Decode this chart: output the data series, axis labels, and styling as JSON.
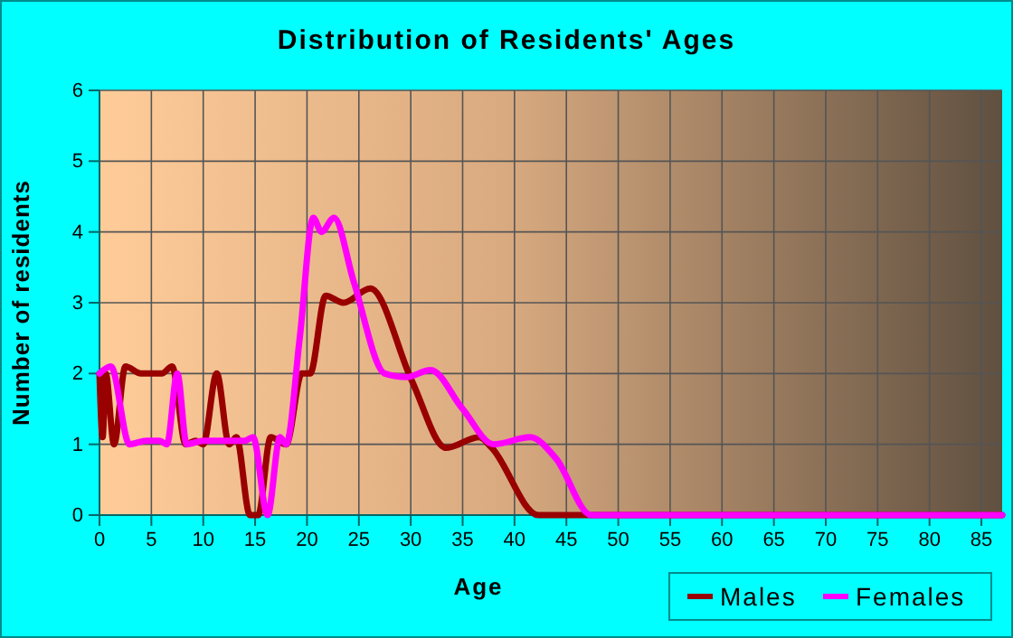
{
  "chart_data": {
    "type": "line",
    "title": "Distribution of Residents' Ages",
    "xlabel": "Age",
    "ylabel": "Number of residents",
    "xlim": [
      0,
      87
    ],
    "xticks": [
      0,
      5,
      10,
      15,
      20,
      25,
      30,
      35,
      40,
      45,
      50,
      55,
      60,
      65,
      70,
      75,
      80,
      85
    ],
    "ylim": [
      0,
      6
    ],
    "yticks": [
      0,
      1,
      2,
      3,
      4,
      5,
      6
    ],
    "grid": true,
    "legend": "bottom right",
    "marker": "none",
    "line_style": "solid",
    "series": [
      {
        "name": "Males",
        "color": "#990000",
        "x": [
          0,
          0.3,
          0.6,
          1.4,
          2.5,
          4,
          6,
          7,
          8.3,
          9.3,
          10,
          11.3,
          12.5,
          13.2,
          14.5,
          15.3,
          16.5,
          18,
          19.5,
          20.3,
          21.8,
          23.5,
          26.1,
          30.1,
          33.4,
          36.6,
          37.8,
          42.3,
          45,
          50,
          60,
          70,
          80,
          87
        ],
        "values": [
          2,
          1.1,
          2,
          1,
          2.1,
          2,
          2,
          2.1,
          1,
          1.05,
          1,
          2,
          1,
          1.1,
          0,
          0,
          1.1,
          1,
          2,
          2,
          3.1,
          3,
          3.2,
          1.9,
          0.95,
          1.1,
          0.95,
          0,
          0,
          0,
          0,
          0,
          0,
          0
        ]
      },
      {
        "name": "Females",
        "color": "#ff00ff",
        "x": [
          0,
          1.1,
          2.9,
          4.5,
          5.8,
          6.5,
          7.5,
          8.4,
          10,
          12,
          14,
          14.8,
          16.2,
          17.4,
          18,
          19.3,
          20.6,
          21.4,
          22.6,
          24.5,
          27.5,
          29.6,
          31.9,
          35,
          38,
          41.5,
          44,
          47.4,
          50,
          60,
          70,
          80,
          87
        ],
        "values": [
          2,
          2.1,
          1,
          1.05,
          1.05,
          1,
          2,
          1,
          1.05,
          1.05,
          1.05,
          1.1,
          0,
          1.1,
          1,
          2.5,
          4.2,
          4,
          4.2,
          3.3,
          2,
          1.95,
          2.05,
          1.5,
          1,
          1.1,
          0.8,
          0,
          0,
          0,
          0,
          0,
          0
        ]
      }
    ]
  }
}
